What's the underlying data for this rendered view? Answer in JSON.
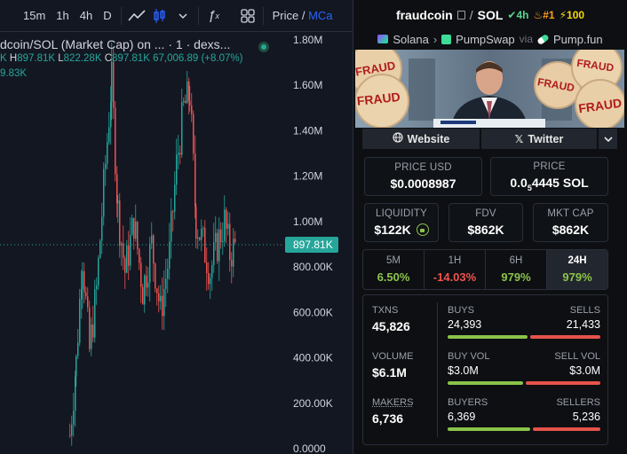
{
  "toolbar": {
    "timeframes": [
      "15m",
      "1h",
      "4h",
      "D"
    ],
    "price_label": "Price /",
    "mcap_label": "MCa"
  },
  "chart_info": {
    "title": "dcoin/SOL (Market Cap) on ... · 1 · dexs...",
    "ohlc": {
      "o_tail": "K",
      "h_key": "H",
      "h": "897.81K",
      "l_key": "L",
      "l": "822.28K",
      "c_key": "C",
      "c": "897.81K",
      "change": "67,006.89 (+8.07%)"
    },
    "volume": "9.83K"
  },
  "chart_data": {
    "type": "candlestick",
    "y_ticks": [
      "1.80M",
      "1.60M",
      "1.40M",
      "1.20M",
      "1.00M",
      "800.00K",
      "600.00K",
      "400.00K",
      "200.00K",
      "0.0000"
    ],
    "y_tick_values": [
      1800000,
      1600000,
      1400000,
      1200000,
      1000000,
      800000,
      600000,
      400000,
      200000,
      0
    ],
    "ylim": [
      0,
      1800000
    ],
    "current_price_label": "897.81K",
    "current_price": 897810,
    "up_color": "#26a69a",
    "down_color": "#ef5350"
  },
  "token": {
    "name": "fraudcoin",
    "pair": "SOL",
    "trend_label": "4h",
    "rank": "#1",
    "boost": "100",
    "chain": "Solana",
    "dex": "PumpSwap",
    "via": "via",
    "launchpad": "Pump.fun"
  },
  "banner": {
    "stamp_text": "FRAUD"
  },
  "links": {
    "website": "Website",
    "twitter": "Twitter"
  },
  "price": {
    "usd_label": "PRICE USD",
    "usd_value": "$0.0008987",
    "native_label": "PRICE",
    "native_prefix": "0.0",
    "native_sub": "5",
    "native_rest": "4445 SOL"
  },
  "metrics": {
    "liquidity_label": "LIQUIDITY",
    "liquidity_value": "$122K",
    "fdv_label": "FDV",
    "fdv_value": "$862K",
    "mcap_label": "MKT CAP",
    "mcap_value": "$862K"
  },
  "timeframes": [
    {
      "label": "5M",
      "value": "6.50%",
      "color": "#8bc34a"
    },
    {
      "label": "1H",
      "value": "-14.03%",
      "color": "#ef5350"
    },
    {
      "label": "6H",
      "value": "979%",
      "color": "#8bc34a"
    },
    {
      "label": "24H",
      "value": "979%",
      "color": "#8bc34a"
    }
  ],
  "stats": {
    "txns_label": "TXNS",
    "txns_value": "45,826",
    "buys_label": "BUYS",
    "buys_value": "24,393",
    "sells_label": "SELLS",
    "sells_value": "21,433",
    "buys_share": 0.53,
    "volume_label": "VOLUME",
    "volume_value": "$6.1M",
    "buyvol_label": "BUY VOL",
    "buyvol_value": "$3.0M",
    "sellvol_label": "SELL VOL",
    "sellvol_value": "$3.0M",
    "buyvol_share": 0.5,
    "makers_label": "MAKERS",
    "makers_value": "6,736",
    "buyers_label": "BUYERS",
    "buyers_value": "6,369",
    "sellers_label": "SELLERS",
    "sellers_value": "5,236",
    "buyers_share": 0.55
  }
}
